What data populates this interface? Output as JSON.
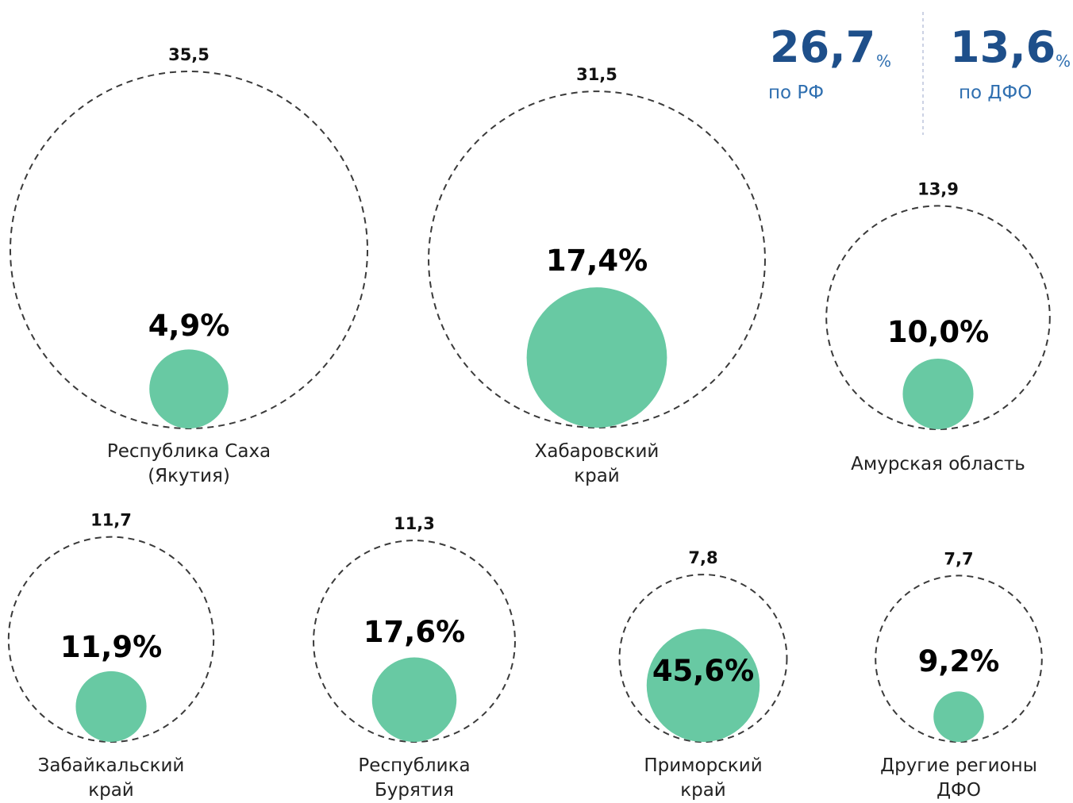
{
  "chart_data": {
    "type": "bubble",
    "categories": [
      "Республика Саха\n(Якутия)",
      "Хабаровский\nкрай",
      "Амурская область",
      "Забайкальский\nкрай",
      "Республика\nБурятия",
      "Приморский\nкрай",
      "Другие регионы\nДФО"
    ],
    "values": [
      35.5,
      31.5,
      13.9,
      11.7,
      11.3,
      7.8,
      7.7
    ],
    "value_labels": [
      "35,5",
      "31,5",
      "13,9",
      "11,7",
      "11,3",
      "7,8",
      "7,7"
    ],
    "outline_color": "#3a3a3a",
    "shares": {
      "values": [
        4.9,
        17.4,
        10.0,
        11.9,
        17.6,
        45.6,
        9.2
      ],
      "value_labels": [
        "4,9%",
        "17,4%",
        "10,0%",
        "11,9%",
        "17,6%",
        "45,6%",
        "9,2%"
      ],
      "color": "#68c9a3"
    },
    "summary": [
      {
        "value": 26.7,
        "label": "26,7",
        "unit": "%",
        "caption": "по РФ"
      },
      {
        "value": 13.6,
        "label": "13,6",
        "unit": "%",
        "caption": "по ДФО"
      }
    ]
  }
}
